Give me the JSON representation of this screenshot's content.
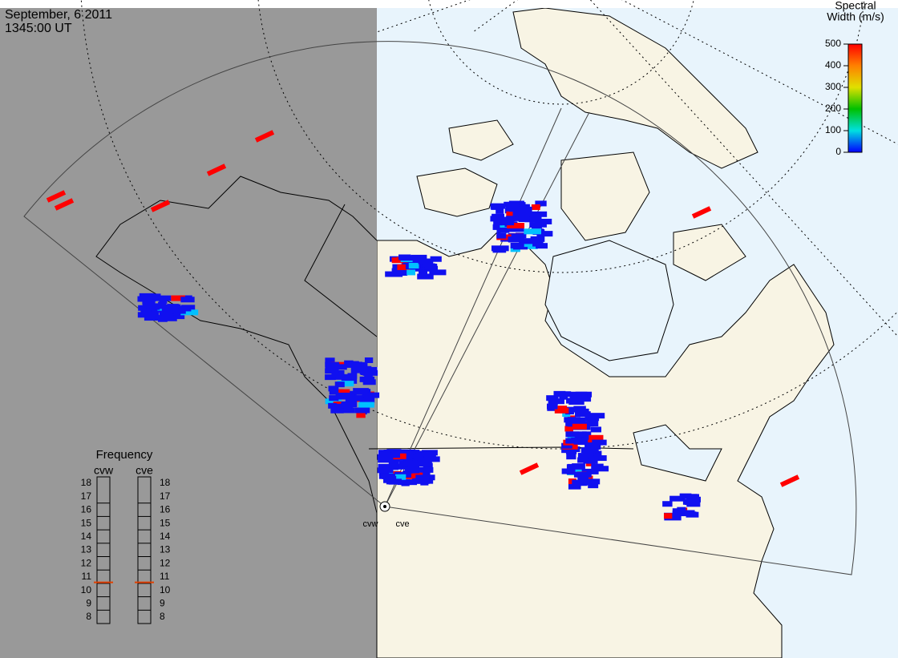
{
  "header": {
    "date": "September, 6 2011",
    "time": "1345:00 UT"
  },
  "colorbar": {
    "title": [
      "Spectral",
      "Width (m/s)"
    ],
    "range": [
      0,
      500
    ],
    "ticks": [
      0,
      100,
      200,
      300,
      400,
      500
    ]
  },
  "frequency": {
    "title": "Frequency",
    "range": [
      8,
      18
    ],
    "ticks": [
      8,
      9,
      10,
      11,
      12,
      13,
      14,
      15,
      16,
      17,
      18
    ],
    "radars": [
      {
        "name": "cvw",
        "value": 10.6
      },
      {
        "name": "cve",
        "value": 10.6
      }
    ]
  },
  "radar_labels": [
    "cvw",
    "cve"
  ]
}
